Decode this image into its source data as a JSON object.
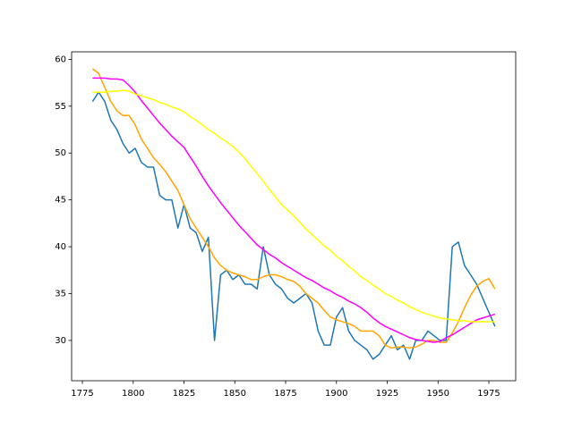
{
  "chart_data": {
    "type": "line",
    "x": [
      1780,
      1783,
      1786,
      1789,
      1792,
      1795,
      1798,
      1801,
      1804,
      1807,
      1810,
      1813,
      1816,
      1819,
      1822,
      1825,
      1828,
      1831,
      1834,
      1837,
      1840,
      1843,
      1846,
      1849,
      1852,
      1855,
      1858,
      1861,
      1864,
      1867,
      1870,
      1873,
      1876,
      1879,
      1882,
      1885,
      1888,
      1891,
      1894,
      1897,
      1900,
      1903,
      1906,
      1909,
      1912,
      1915,
      1918,
      1921,
      1924,
      1927,
      1930,
      1933,
      1936,
      1939,
      1942,
      1945,
      1948,
      1951,
      1954,
      1957,
      1960,
      1963,
      1966,
      1969,
      1972,
      1975,
      1978
    ],
    "series": [
      {
        "color": "#1f77b4",
        "values": [
          55.5,
          56.5,
          55.5,
          53.5,
          52.5,
          51.0,
          50.0,
          50.5,
          49.0,
          48.5,
          48.5,
          45.5,
          45.0,
          45.0,
          42.0,
          44.5,
          42.0,
          41.5,
          39.5,
          41.0,
          30.0,
          37.0,
          37.5,
          36.5,
          37.0,
          36.0,
          36.0,
          35.5,
          40.0,
          37.0,
          36.0,
          35.5,
          34.5,
          34.0,
          34.5,
          35.0,
          34.0,
          31.0,
          29.5,
          29.5,
          32.5,
          33.5,
          31.0,
          30.0,
          29.5,
          29.0,
          28.0,
          28.5,
          29.5,
          30.5,
          29.0,
          29.5,
          28.0,
          30.0,
          30.0,
          31.0,
          30.5,
          30.0,
          30.0,
          40.0,
          40.5,
          38.0,
          37.0,
          36.0,
          34.5,
          33.0,
          31.5
        ]
      },
      {
        "color": "#ffa500",
        "values": [
          59,
          58.5,
          57,
          55.5,
          54.5,
          54,
          54,
          53,
          51.5,
          50.5,
          49.5,
          48.8,
          48,
          47,
          46,
          44.5,
          43,
          42,
          41,
          40,
          38.8,
          38,
          37.5,
          37.2,
          37,
          36.8,
          36.5,
          36.5,
          36.8,
          37,
          37,
          36.8,
          36.5,
          36.3,
          35.8,
          35,
          34.5,
          34,
          33.2,
          32.5,
          32.2,
          32,
          31.8,
          31.5,
          31,
          31,
          31,
          30.5,
          29.5,
          29.2,
          29.3,
          29.3,
          29.2,
          29.3,
          29.6,
          30,
          30,
          29.8,
          29.8,
          30.8,
          32,
          33.5,
          34.8,
          35.8,
          36.3,
          36.6,
          35.5
        ]
      },
      {
        "color": "#ff00ff",
        "values": [
          58,
          58,
          58,
          57.9,
          57.9,
          57.8,
          57.2,
          56.5,
          55.6,
          54.8,
          54,
          53.2,
          52.5,
          51.8,
          51.2,
          50.6,
          49.6,
          48.6,
          47.5,
          46.5,
          45.6,
          44.7,
          43.9,
          43.1,
          42.3,
          41.6,
          40.9,
          40.2,
          39.7,
          39.2,
          38.8,
          38.3,
          37.9,
          37.5,
          37.1,
          36.7,
          36.4,
          36,
          35.6,
          35.3,
          34.9,
          34.6,
          34.2,
          33.9,
          33.5,
          33,
          32.4,
          31.9,
          31.5,
          31.2,
          30.9,
          30.6,
          30.3,
          30.1,
          30,
          29.9,
          29.8,
          29.9,
          30.3,
          30.6,
          31,
          31.4,
          31.8,
          32.2,
          32.4,
          32.6,
          32.8
        ]
      },
      {
        "color": "#ffff00",
        "values": [
          56.5,
          56.5,
          56.5,
          56.6,
          56.6,
          56.7,
          56.6,
          56.3,
          56.1,
          55.9,
          55.7,
          55.4,
          55.2,
          54.9,
          54.7,
          54.4,
          53.9,
          53.5,
          53.0,
          52.5,
          52.1,
          51.6,
          51.2,
          50.7,
          50.1,
          49.4,
          48.6,
          47.8,
          47.0,
          46.1,
          45.3,
          44.5,
          43.9,
          43.3,
          42.6,
          41.9,
          41.3,
          40.7,
          40.1,
          39.6,
          39.0,
          38.5,
          37.9,
          37.4,
          36.8,
          36.4,
          35.9,
          35.5,
          35.0,
          34.7,
          34.3,
          34.0,
          33.6,
          33.3,
          33.0,
          32.8,
          32.6,
          32.4,
          32.3,
          32.2,
          32.1,
          32.1,
          32.0,
          32.0,
          32.0,
          32.0,
          32.0
        ]
      }
    ],
    "xlim": [
      1769.7,
      1988.2
    ],
    "xticks": [
      1775,
      1800,
      1825,
      1850,
      1875,
      1900,
      1925,
      1950,
      1975
    ],
    "ylim": [
      25.7,
      60.8
    ],
    "yticks": [
      30,
      35,
      40,
      45,
      50,
      55,
      60
    ]
  }
}
